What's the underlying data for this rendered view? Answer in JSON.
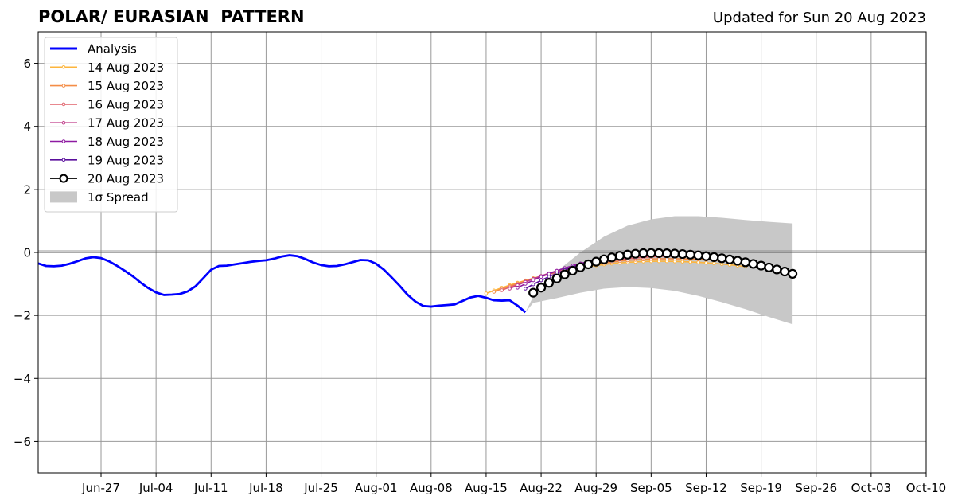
{
  "header": {
    "title": "POLAR/ EURASIAN  PATTERN",
    "updated": "Updated for Sun 20 Aug 2023"
  },
  "chart_data": {
    "type": "line",
    "x_axis": {
      "type": "date",
      "range": [
        "2023-06-19",
        "2023-10-10"
      ],
      "ticks": [
        "2023-06-27",
        "2023-07-04",
        "2023-07-11",
        "2023-07-18",
        "2023-07-25",
        "2023-08-01",
        "2023-08-08",
        "2023-08-15",
        "2023-08-22",
        "2023-08-29",
        "2023-09-05",
        "2023-09-12",
        "2023-09-19",
        "2023-09-26",
        "2023-10-03",
        "2023-10-10"
      ],
      "tick_labels": [
        "Jun-27",
        "Jul-04",
        "Jul-11",
        "Jul-18",
        "Jul-25",
        "Aug-01",
        "Aug-08",
        "Aug-15",
        "Aug-22",
        "Aug-29",
        "Sep-05",
        "Sep-12",
        "Sep-19",
        "Sep-26",
        "Oct-03",
        "Oct-10"
      ]
    },
    "y_axis": {
      "range": [
        -7,
        7
      ],
      "ticks": [
        -6,
        -4,
        -2,
        0,
        2,
        4,
        6
      ],
      "tick_labels": [
        "−6",
        "−4",
        "−2",
        "0",
        "2",
        "4",
        "6"
      ]
    },
    "grid": true,
    "zero_line": true,
    "legend_position": "upper-left",
    "analysis": {
      "name": "Analysis",
      "color": "#0000ff",
      "x": [
        "2023-06-19",
        "2023-06-20",
        "2023-06-21",
        "2023-06-22",
        "2023-06-23",
        "2023-06-24",
        "2023-06-25",
        "2023-06-26",
        "2023-06-27",
        "2023-06-28",
        "2023-06-29",
        "2023-06-30",
        "2023-07-01",
        "2023-07-02",
        "2023-07-03",
        "2023-07-04",
        "2023-07-05",
        "2023-07-06",
        "2023-07-07",
        "2023-07-08",
        "2023-07-09",
        "2023-07-10",
        "2023-07-11",
        "2023-07-12",
        "2023-07-13",
        "2023-07-14",
        "2023-07-15",
        "2023-07-16",
        "2023-07-17",
        "2023-07-18",
        "2023-07-19",
        "2023-07-20",
        "2023-07-21",
        "2023-07-22",
        "2023-07-23",
        "2023-07-24",
        "2023-07-25",
        "2023-07-26",
        "2023-07-27",
        "2023-07-28",
        "2023-07-29",
        "2023-07-30",
        "2023-07-31",
        "2023-08-01",
        "2023-08-02",
        "2023-08-03",
        "2023-08-04",
        "2023-08-05",
        "2023-08-06",
        "2023-08-07",
        "2023-08-08",
        "2023-08-09",
        "2023-08-10",
        "2023-08-11",
        "2023-08-12",
        "2023-08-13",
        "2023-08-14",
        "2023-08-15",
        "2023-08-16",
        "2023-08-17",
        "2023-08-18",
        "2023-08-19",
        "2023-08-20"
      ],
      "y": [
        -0.35,
        -0.43,
        -0.44,
        -0.42,
        -0.36,
        -0.28,
        -0.19,
        -0.15,
        -0.18,
        -0.28,
        -0.42,
        -0.58,
        -0.75,
        -0.95,
        -1.13,
        -1.27,
        -1.35,
        -1.34,
        -1.32,
        -1.24,
        -1.08,
        -0.82,
        -0.55,
        -0.43,
        -0.42,
        -0.38,
        -0.34,
        -0.3,
        -0.27,
        -0.25,
        -0.2,
        -0.13,
        -0.09,
        -0.12,
        -0.21,
        -0.32,
        -0.4,
        -0.44,
        -0.43,
        -0.38,
        -0.31,
        -0.24,
        -0.25,
        -0.36,
        -0.55,
        -0.8,
        -1.06,
        -1.34,
        -1.56,
        -1.7,
        -1.72,
        -1.69,
        -1.67,
        -1.65,
        -1.54,
        -1.43,
        -1.38,
        -1.44,
        -1.52,
        -1.53,
        -1.52,
        -1.69,
        -1.9
      ]
    },
    "forecasts": [
      {
        "name": "14 Aug 2023",
        "color": "#fdb53c",
        "start": "2023-08-15",
        "end": "2023-09-17",
        "y_start": -1.3,
        "peak_day": "2023-09-06",
        "y_peak": -0.28,
        "y_end": -0.45
      },
      {
        "name": "15 Aug 2023",
        "color": "#f48d47",
        "start": "2023-08-16",
        "end": "2023-09-18",
        "y_start": -1.25,
        "peak_day": "2023-09-07",
        "y_peak": -0.2,
        "y_end": -0.35
      },
      {
        "name": "16 Aug 2023",
        "color": "#e0616a",
        "start": "2023-08-17",
        "end": "2023-09-19",
        "y_start": -1.2,
        "peak_day": "2023-09-08",
        "y_peak": -0.12,
        "y_end": -0.35
      },
      {
        "name": "17 Aug 2023",
        "color": "#c03d8a",
        "start": "2023-08-18",
        "end": "2023-09-20",
        "y_start": -1.15,
        "peak_day": "2023-09-06",
        "y_peak": -0.08,
        "y_end": -0.45
      },
      {
        "name": "18 Aug 2023",
        "color": "#8e1aa1",
        "start": "2023-08-19",
        "end": "2023-09-21",
        "y_start": -1.12,
        "peak_day": "2023-09-05",
        "y_peak": -0.05,
        "y_end": -0.5
      },
      {
        "name": "19 Aug 2023",
        "color": "#5a0f9c",
        "start": "2023-08-20",
        "end": "2023-09-22",
        "y_start": -1.15,
        "peak_day": "2023-09-05",
        "y_peak": -0.03,
        "y_end": -0.6
      },
      {
        "name": "20 Aug 2023",
        "color": "#000000",
        "start": "2023-08-21",
        "end": "2023-09-23",
        "y_start": -1.28,
        "peak_day": "2023-09-05",
        "y_peak": -0.02,
        "y_end": -0.68
      }
    ],
    "spread": {
      "name": "1σ Spread",
      "color": "#c8c8c8",
      "x": [
        "2023-08-20",
        "2023-08-21",
        "2023-08-24",
        "2023-08-27",
        "2023-08-30",
        "2023-09-02",
        "2023-09-05",
        "2023-09-08",
        "2023-09-11",
        "2023-09-14",
        "2023-09-17",
        "2023-09-20",
        "2023-09-23"
      ],
      "upper": [
        -1.9,
        -1.4,
        -0.6,
        0.0,
        0.5,
        0.85,
        1.05,
        1.15,
        1.15,
        1.1,
        1.03,
        0.97,
        0.92
      ],
      "lower": [
        -1.9,
        -1.6,
        -1.45,
        -1.28,
        -1.15,
        -1.1,
        -1.13,
        -1.22,
        -1.38,
        -1.58,
        -1.8,
        -2.05,
        -2.28
      ]
    }
  }
}
